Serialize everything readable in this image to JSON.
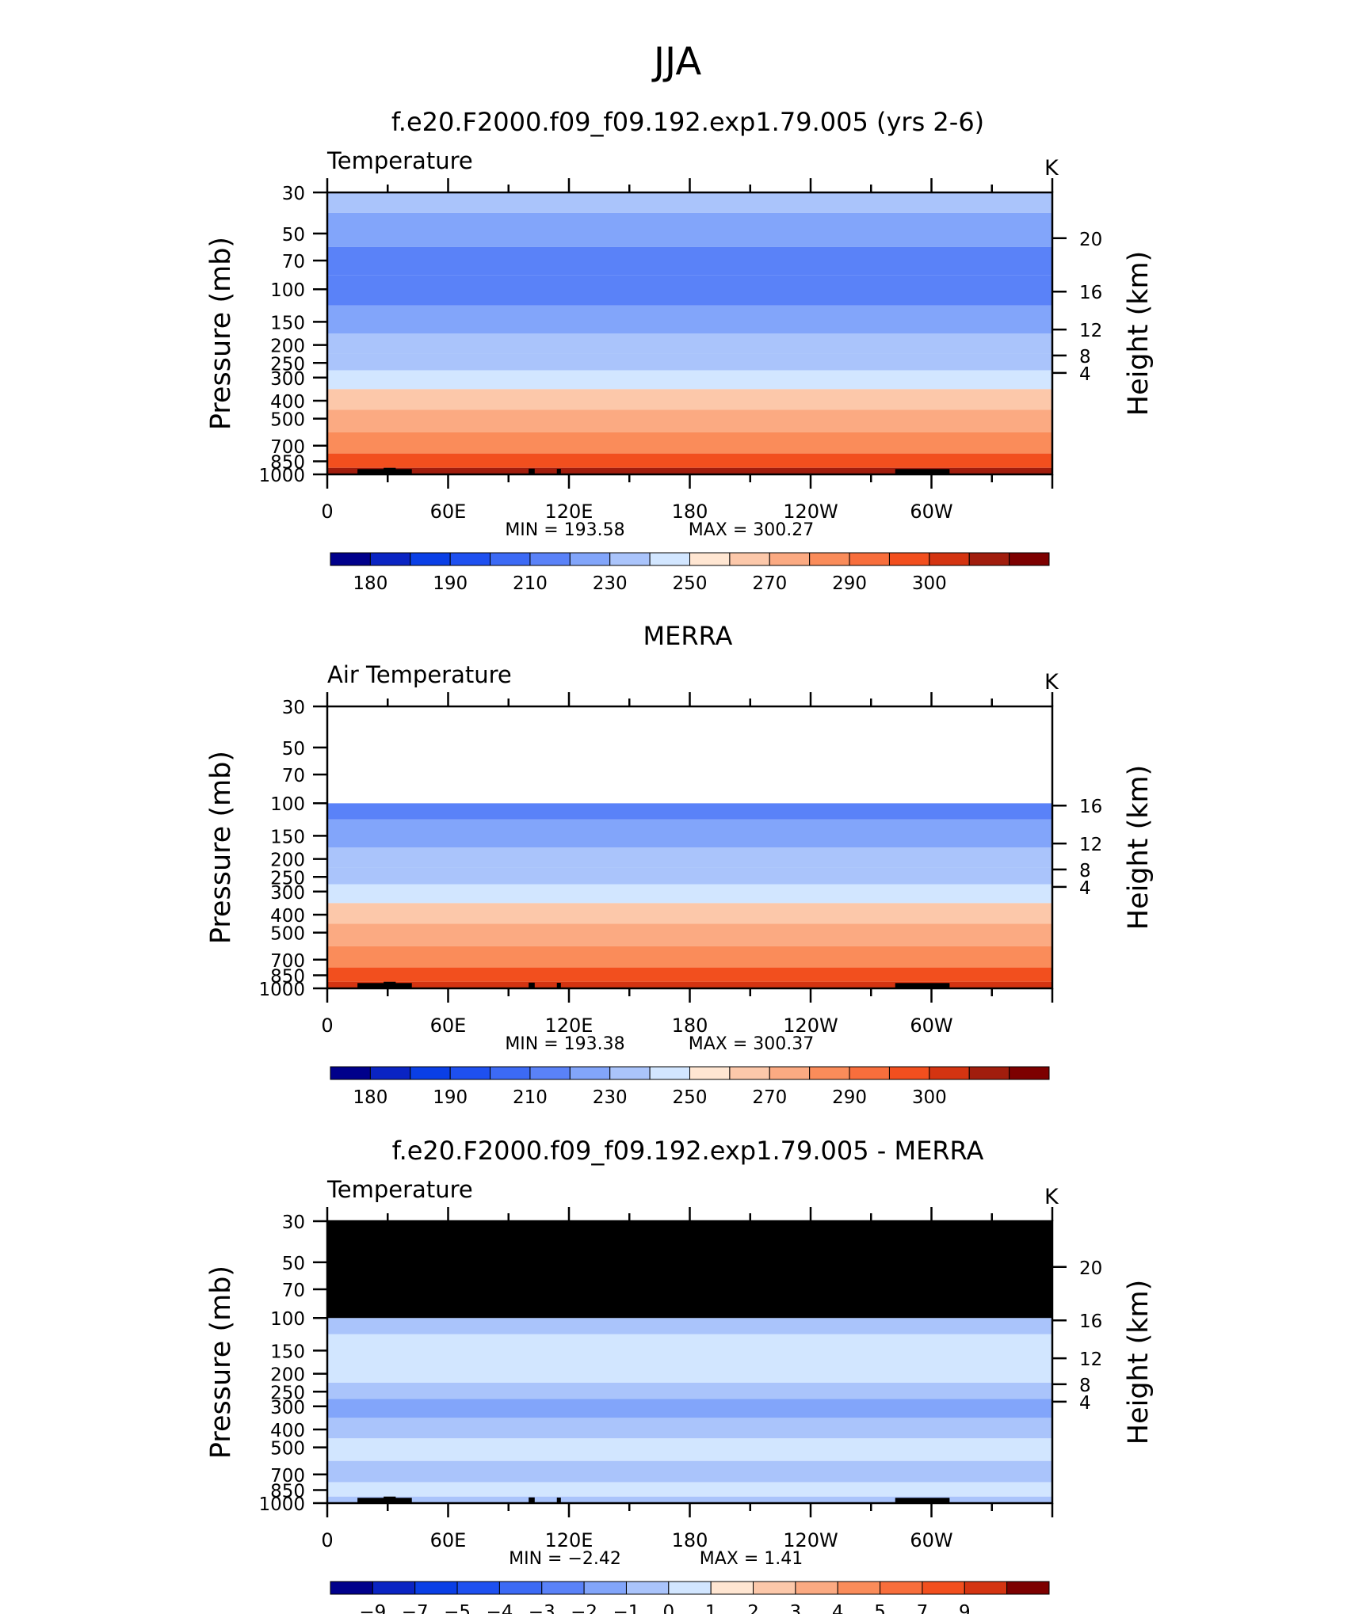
{
  "figure": {
    "title": "JJA"
  },
  "chart_data": [
    {
      "type": "heatmap",
      "title": "f.e20.F2000.f09_f09.192.exp1.79.005 (yrs 2-6)",
      "subtitle": "Temperature",
      "units": "K",
      "ylabel": "Pressure (mb)",
      "y2label": "Height (km)",
      "x_ticks": [
        "0",
        "60E",
        "120E",
        "180",
        "120W",
        "60W"
      ],
      "y_ticks": [
        "30",
        "50",
        "70",
        "100",
        "150",
        "200",
        "250",
        "300",
        "400",
        "500",
        "700",
        "850",
        "1000"
      ],
      "y2_ticks": [
        "20",
        "16",
        "12",
        "8",
        "4"
      ],
      "xlim": [
        0,
        360
      ],
      "ylim": [
        1000,
        30
      ],
      "y_scale": "log",
      "stats": {
        "min_label": "MIN",
        "min": "193.58",
        "max_label": "MAX",
        "max": "300.27"
      },
      "colorbar_labels": [
        "180",
        "190",
        "210",
        "230",
        "250",
        "270",
        "290",
        "300"
      ],
      "masked_top": null,
      "zonal_profile": [
        {
          "p": 30,
          "value": 222
        },
        {
          "p": 50,
          "value": 214
        },
        {
          "p": 70,
          "value": 208
        },
        {
          "p": 100,
          "value": 202
        },
        {
          "p": 150,
          "value": 212
        },
        {
          "p": 200,
          "value": 220
        },
        {
          "p": 250,
          "value": 228
        },
        {
          "p": 300,
          "value": 236
        },
        {
          "p": 400,
          "value": 252
        },
        {
          "p": 500,
          "value": 262
        },
        {
          "p": 700,
          "value": 278
        },
        {
          "p": 850,
          "value": 287
        },
        {
          "p": 1000,
          "value": 295
        }
      ]
    },
    {
      "type": "heatmap",
      "title": "MERRA",
      "subtitle": "Air Temperature",
      "units": "K",
      "ylabel": "Pressure (mb)",
      "y2label": "Height (km)",
      "x_ticks": [
        "0",
        "60E",
        "120E",
        "180",
        "120W",
        "60W"
      ],
      "y_ticks": [
        "30",
        "50",
        "70",
        "100",
        "150",
        "200",
        "250",
        "300",
        "400",
        "500",
        "700",
        "850",
        "1000"
      ],
      "y2_ticks": [
        "16",
        "12",
        "8",
        "4"
      ],
      "xlim": [
        0,
        360
      ],
      "ylim": [
        1000,
        30
      ],
      "y_scale": "log",
      "stats": {
        "min_label": "MIN",
        "min": "193.38",
        "max_label": "MAX",
        "max": "300.37"
      },
      "colorbar_labels": [
        "180",
        "190",
        "210",
        "230",
        "250",
        "270",
        "290",
        "300"
      ],
      "masked_top": {
        "above_p": 100,
        "color": "#ffffff"
      },
      "zonal_profile": [
        {
          "p": 100,
          "value": 206
        },
        {
          "p": 150,
          "value": 212
        },
        {
          "p": 200,
          "value": 220
        },
        {
          "p": 250,
          "value": 228
        },
        {
          "p": 300,
          "value": 236
        },
        {
          "p": 400,
          "value": 252
        },
        {
          "p": 500,
          "value": 262
        },
        {
          "p": 700,
          "value": 278
        },
        {
          "p": 850,
          "value": 287
        },
        {
          "p": 1000,
          "value": 294
        }
      ]
    },
    {
      "type": "heatmap",
      "title": "f.e20.F2000.f09_f09.192.exp1.79.005 - MERRA",
      "subtitle": "Temperature",
      "units": "K",
      "ylabel": "Pressure (mb)",
      "y2label": "Height (km)",
      "x_ticks": [
        "0",
        "60E",
        "120E",
        "180",
        "120W",
        "60W"
      ],
      "y_ticks": [
        "30",
        "50",
        "70",
        "100",
        "150",
        "200",
        "250",
        "300",
        "400",
        "500",
        "700",
        "850",
        "1000"
      ],
      "y2_ticks": [
        "20",
        "16",
        "12",
        "8",
        "4"
      ],
      "xlim": [
        0,
        360
      ],
      "ylim": [
        1000,
        30
      ],
      "y_scale": "log",
      "stats": {
        "min_label": "MIN",
        "min": "−2.42",
        "max_label": "MAX",
        "max": "1.41"
      },
      "colorbar_labels": [
        "−9",
        "−7",
        "−5",
        "−4",
        "−3",
        "−2",
        "−1",
        "0",
        "1",
        "2",
        "3",
        "4",
        "5",
        "7",
        "9"
      ],
      "masked_top": {
        "above_p": 100,
        "color": "#000000"
      },
      "zonal_profile": [
        {
          "p": 100,
          "value": -0.3
        },
        {
          "p": 150,
          "value": 0.4
        },
        {
          "p": 200,
          "value": 0.3
        },
        {
          "p": 250,
          "value": -0.6
        },
        {
          "p": 300,
          "value": -1.2
        },
        {
          "p": 400,
          "value": -0.8
        },
        {
          "p": 500,
          "value": 0.3
        },
        {
          "p": 700,
          "value": -0.3
        },
        {
          "p": 850,
          "value": 0.2
        },
        {
          "p": 1000,
          "value": -0.2
        }
      ]
    }
  ],
  "colormaps": {
    "temperature": {
      "colors": [
        "#00008b",
        "#0a24c3",
        "#0a3fe6",
        "#1e50f0",
        "#3c6af5",
        "#5a82f8",
        "#82a5fa",
        "#aac4fb",
        "#d2e6ff",
        "#ffe6d2",
        "#fcc8aa",
        "#fbaa82",
        "#fa8c5a",
        "#f86e3c",
        "#f24f1e",
        "#d43411",
        "#a11d0d",
        "#7d0000"
      ],
      "bounds": [
        175,
        180,
        185,
        190,
        200,
        210,
        220,
        230,
        240,
        250,
        260,
        270,
        280,
        285,
        290,
        295,
        300
      ]
    },
    "difference": {
      "colors": [
        "#00008b",
        "#0a24c3",
        "#0a3fe6",
        "#1e50f0",
        "#3c6af5",
        "#5a82f8",
        "#82a5fa",
        "#aac4fb",
        "#d2e6ff",
        "#ffe6d2",
        "#fcc8aa",
        "#fbaa82",
        "#fa8c5a",
        "#f86e3c",
        "#f24f1e",
        "#d43411",
        "#7d0000"
      ],
      "bounds": [
        -9,
        -7,
        -5,
        -4,
        -3,
        -2,
        -1,
        0,
        1,
        2,
        3,
        4,
        5,
        7,
        9
      ]
    }
  }
}
